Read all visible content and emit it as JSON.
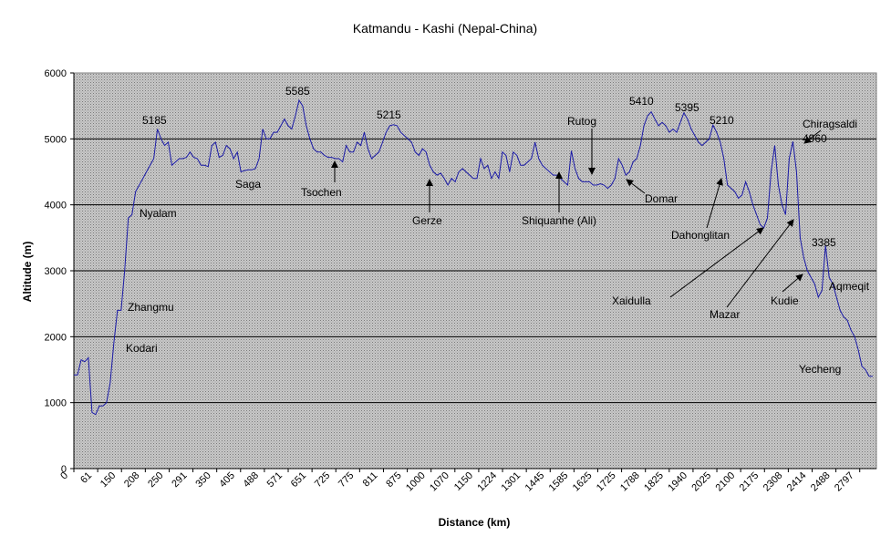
{
  "chart_data": {
    "type": "line",
    "title": "Katmandu - Kashi (Nepal-China)",
    "xlabel": "Distance (km)",
    "ylabel": "Altitude (m)",
    "ylim": [
      0,
      6000
    ],
    "yticks": [
      0,
      1000,
      2000,
      3000,
      4000,
      5000,
      6000
    ],
    "grid": true,
    "legend": "none",
    "colors": {
      "line": "#1a1aa6",
      "plot_bg": "#c0c0c0",
      "grid": "#000000",
      "arrow": "#000000"
    },
    "x_tick_labels": [
      "0",
      "61",
      "150",
      "208",
      "250",
      "291",
      "350",
      "405",
      "488",
      "571",
      "651",
      "725",
      "775",
      "811",
      "875",
      "1000",
      "1070",
      "1150",
      "1224",
      "1301",
      "1445",
      "1585",
      "1625",
      "1725",
      "1788",
      "1825",
      "1940",
      "2025",
      "2100",
      "2175",
      "2308",
      "2414",
      "2488",
      "2797"
    ],
    "series": [
      {
        "name": "",
        "values": [
          1420,
          1420,
          1650,
          1620,
          1680,
          850,
          820,
          950,
          950,
          1000,
          1300,
          1900,
          2400,
          2400,
          3000,
          3800,
          3850,
          4200,
          4300,
          4400,
          4500,
          4600,
          4700,
          5150,
          5000,
          4900,
          4950,
          4600,
          4650,
          4700,
          4700,
          4720,
          4800,
          4720,
          4700,
          4600,
          4600,
          4580,
          4900,
          4950,
          4720,
          4750,
          4900,
          4850,
          4700,
          4800,
          4500,
          4520,
          4530,
          4530,
          4550,
          4700,
          5150,
          5000,
          5000,
          5100,
          5100,
          5200,
          5300,
          5200,
          5150,
          5350,
          5585,
          5500,
          5200,
          5000,
          4850,
          4800,
          4800,
          4750,
          4720,
          4720,
          4700,
          4700,
          4650,
          4900,
          4800,
          4800,
          4950,
          4900,
          5100,
          4850,
          4700,
          4750,
          4800,
          4950,
          5100,
          5200,
          5215,
          5200,
          5100,
          5050,
          5000,
          4950,
          4800,
          4750,
          4850,
          4800,
          4600,
          4500,
          4450,
          4480,
          4400,
          4300,
          4400,
          4350,
          4500,
          4550,
          4500,
          4450,
          4400,
          4400,
          4700,
          4550,
          4600,
          4400,
          4500,
          4400,
          4800,
          4750,
          4500,
          4800,
          4750,
          4600,
          4600,
          4650,
          4700,
          4950,
          4700,
          4600,
          4550,
          4500,
          4450,
          4450,
          4400,
          4350,
          4300,
          4820,
          4550,
          4400,
          4350,
          4350,
          4350,
          4300,
          4300,
          4320,
          4300,
          4250,
          4300,
          4400,
          4700,
          4600,
          4450,
          4500,
          4650,
          4700,
          4900,
          5200,
          5350,
          5410,
          5300,
          5200,
          5250,
          5200,
          5100,
          5150,
          5100,
          5250,
          5395,
          5300,
          5150,
          5050,
          4950,
          4900,
          4950,
          5000,
          5210,
          5100,
          4950,
          4700,
          4300,
          4250,
          4200,
          4100,
          4150,
          4350,
          4200,
          4000,
          3850,
          3700,
          3650,
          3800,
          4500,
          4900,
          4300,
          4000,
          3850,
          4700,
          4960,
          4500,
          3500,
          3200,
          3000,
          2900,
          2800,
          2600,
          2700,
          3385,
          2900,
          2800,
          2600,
          2400,
          2300,
          2250,
          2100,
          2000,
          1800,
          1550,
          1500,
          1400,
          1400
        ]
      }
    ],
    "annotations": [
      {
        "text": "Chiragsaldi",
        "x": 880,
        "y": 140
      },
      {
        "text": "4960",
        "x": 880,
        "y": 156
      },
      {
        "text": "5185",
        "x": 156,
        "y": 136
      },
      {
        "text": "5585",
        "x": 313,
        "y": 104
      },
      {
        "text": "5215",
        "x": 413,
        "y": 130
      },
      {
        "text": "5410",
        "x": 690,
        "y": 115
      },
      {
        "text": "5395",
        "x": 740,
        "y": 122
      },
      {
        "text": "5210",
        "x": 778,
        "y": 136
      },
      {
        "text": "3385",
        "x": 890,
        "y": 270
      },
      {
        "text": "Rutog",
        "x": 622,
        "y": 137
      },
      {
        "text": "Nyalam",
        "x": 153,
        "y": 238
      },
      {
        "text": "Saga",
        "x": 258,
        "y": 206
      },
      {
        "text": "Tsochen",
        "x": 330,
        "y": 215
      },
      {
        "text": "Gerze",
        "x": 452,
        "y": 246
      },
      {
        "text": "Shiquanhe (Ali)",
        "x": 572,
        "y": 246
      },
      {
        "text": "Domar",
        "x": 707,
        "y": 222
      },
      {
        "text": "Dahonglitan",
        "x": 736,
        "y": 262
      },
      {
        "text": "Zhangmu",
        "x": 140,
        "y": 341
      },
      {
        "text": "Kodari",
        "x": 138,
        "y": 386
      },
      {
        "text": "Xaidulla",
        "x": 671,
        "y": 334
      },
      {
        "text": "Mazar",
        "x": 778,
        "y": 349
      },
      {
        "text": "Kudie",
        "x": 845,
        "y": 334
      },
      {
        "text": "Aqmeqit",
        "x": 909,
        "y": 318
      },
      {
        "text": "Yecheng",
        "x": 876,
        "y": 409
      }
    ]
  }
}
